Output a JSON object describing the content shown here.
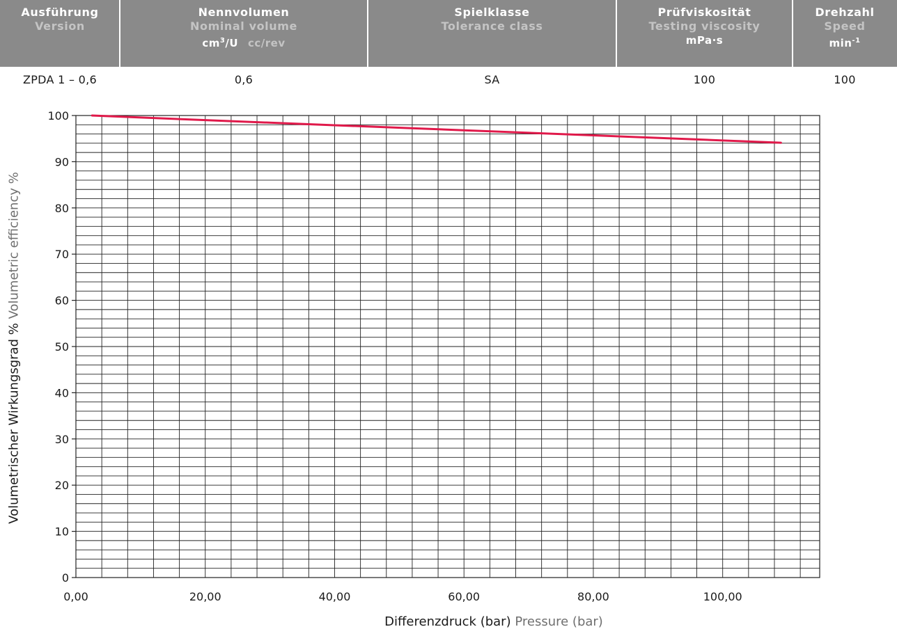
{
  "table": {
    "columns": [
      {
        "de": "Ausführung",
        "en": "Version",
        "unit_main": "",
        "unit_sup": "",
        "unit_rest": "",
        "unit_en": ""
      },
      {
        "de": "Nennvolumen",
        "en": "Nominal volume",
        "unit_main": "cm",
        "unit_sup": "3",
        "unit_rest": "/U",
        "unit_en": "cc/rev"
      },
      {
        "de": "Spielklasse",
        "en": "Tolerance class",
        "unit_main": "",
        "unit_sup": "",
        "unit_rest": "",
        "unit_en": ""
      },
      {
        "de": "Prüfviskosität",
        "en": "Testing viscosity",
        "unit_main": "mPa·s",
        "unit_sup": "",
        "unit_rest": "",
        "unit_en": ""
      },
      {
        "de": "Drehzahl",
        "en": "Speed",
        "unit_main": "min",
        "unit_sup": "-1",
        "unit_rest": "",
        "unit_en": ""
      }
    ],
    "row": [
      "ZPDA 1 – 0,6",
      "0,6",
      "SA",
      "100",
      "100"
    ]
  },
  "chart_data": {
    "type": "line",
    "xlabel": "Differenzdruck (bar)",
    "xlabel_en": "Pressure (bar)",
    "ylabel": "Volumetrischer Wirkungsgrad %",
    "ylabel_en": "Volumetric efficiency %",
    "xlim": [
      0,
      115
    ],
    "ylim": [
      0,
      100
    ],
    "x_ticks": [
      0,
      20,
      40,
      60,
      80,
      100
    ],
    "x_tick_labels": [
      "0,00",
      "20,00",
      "40,00",
      "60,00",
      "80,00",
      "100,00"
    ],
    "y_ticks": [
      0,
      10,
      20,
      30,
      40,
      50,
      60,
      70,
      80,
      90,
      100
    ],
    "x_grid_step": 4,
    "y_grid_step": 2,
    "grid": true,
    "series": [
      {
        "color": "#e0194a",
        "x": [
          2.5,
          20,
          40,
          60,
          80,
          100,
          109
        ],
        "y": [
          100,
          99.0,
          97.9,
          96.8,
          95.7,
          94.6,
          94.1
        ]
      }
    ]
  }
}
